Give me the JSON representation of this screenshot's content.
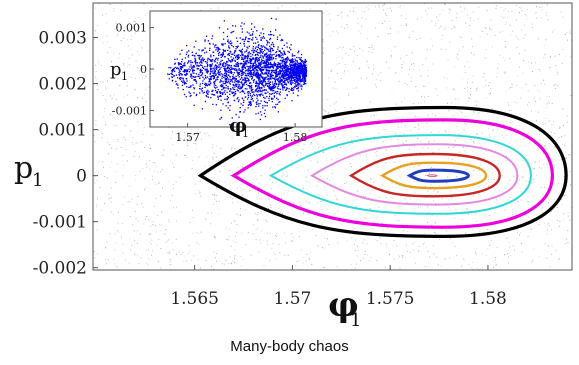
{
  "caption": "Many-body chaos",
  "chart_data": [
    {
      "type": "line",
      "title": "",
      "xlabel": "φ",
      "xlabel_sub": "1",
      "ylabel": "p",
      "ylabel_sub": "1",
      "xlim": [
        1.5598,
        1.5843
      ],
      "ylim": [
        -0.00205,
        0.00375
      ],
      "xticks": [
        1.565,
        1.57,
        1.575,
        1.58
      ],
      "xtick_labels": [
        "1.565",
        "1.57",
        "1.575",
        "1.58"
      ],
      "yticks": [
        0.003,
        0.002,
        0.001,
        0,
        -0.001,
        -0.002
      ],
      "ytick_labels": [
        "0.003",
        "0.002",
        "0.001",
        "0",
        "-0.001",
        "-0.002"
      ],
      "background": "chaotic scattered points",
      "series": [
        {
          "color": "#000000",
          "x_left": 1.5653,
          "x_right": 1.584,
          "y_max": 0.00148,
          "y_min": -0.00132,
          "peak_x": 1.5778,
          "width": 3.2
        },
        {
          "color": "#ee00dd",
          "x_left": 1.567,
          "x_right": 1.5833,
          "y_max": 0.00121,
          "y_min": -0.00112,
          "peak_x": 1.5778,
          "width": 3.2
        },
        {
          "color": "#33d6d6",
          "x_left": 1.5689,
          "x_right": 1.5822,
          "y_max": 0.00088,
          "y_min": -0.00083,
          "peak_x": 1.5775,
          "width": 2
        },
        {
          "color": "#e38ae0",
          "x_left": 1.571,
          "x_right": 1.5815,
          "y_max": 0.00068,
          "y_min": -0.00063,
          "peak_x": 1.5774,
          "width": 2
        },
        {
          "color": "#c62828",
          "x_left": 1.573,
          "x_right": 1.5806,
          "y_max": 0.00047,
          "y_min": -0.00045,
          "peak_x": 1.5772,
          "width": 2.4
        },
        {
          "color": "#e8a020",
          "x_left": 1.5746,
          "x_right": 1.5799,
          "y_max": 0.00028,
          "y_min": -0.00027,
          "peak_x": 1.5772,
          "width": 2.4
        },
        {
          "color": "#1f3fbf",
          "x_left": 1.576,
          "x_right": 1.579,
          "y_max": 0.00012,
          "y_min": -0.00012,
          "peak_x": 1.5772,
          "width": 3
        },
        {
          "color": "#e06080",
          "x_left": 1.5769,
          "x_right": 1.5774,
          "y_max": 2e-05,
          "y_min": -2e-05,
          "peak_x": 1.5771,
          "width": 1
        }
      ]
    },
    {
      "type": "scatter",
      "title": "",
      "xlabel": "φ",
      "xlabel_sub": "1",
      "ylabel": "p",
      "ylabel_sub": "1",
      "xlim": [
        1.5665,
        1.5825
      ],
      "ylim": [
        -0.0014,
        0.0014
      ],
      "xticks": [
        1.57,
        1.58
      ],
      "xtick_labels": [
        "1.57",
        "1.58"
      ],
      "yticks": [
        0.001,
        0,
        -0.001
      ],
      "ytick_labels": [
        "0.001",
        "0",
        "-0.001"
      ],
      "cloud": {
        "x_center": 1.5755,
        "x_min": 1.568,
        "x_max": 1.581,
        "y_center": -5e-05,
        "y_spread": 0.0009
      },
      "color": "#0000ee"
    }
  ]
}
